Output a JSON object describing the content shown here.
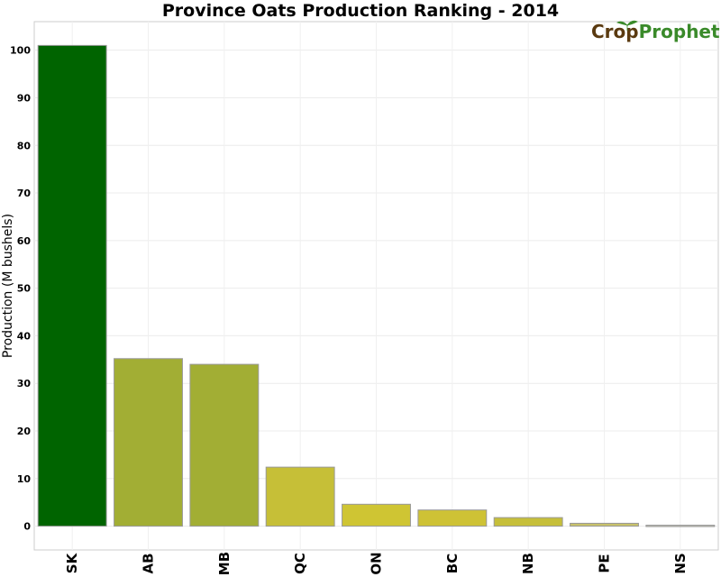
{
  "chart_data": {
    "type": "bar",
    "title": "Province Oats Production Ranking - 2014",
    "xlabel": "",
    "ylabel": "Production (M bushels)",
    "categories": [
      "SK",
      "AB",
      "MB",
      "QC",
      "ON",
      "BC",
      "NB",
      "PE",
      "NS"
    ],
    "values": [
      101.0,
      35.2,
      34.0,
      12.4,
      4.6,
      3.4,
      1.8,
      0.6,
      0.2
    ],
    "colors": [
      "#006400",
      "#a2ae34",
      "#a2ae34",
      "#c6bf37",
      "#cfc533",
      "#cec235",
      "#c6bf3a",
      "#c8c16a",
      "#c8c8b8"
    ],
    "bar_edge_color": "#999999",
    "ylim": [
      -5,
      106
    ],
    "yticks": [
      0,
      10,
      20,
      30,
      40,
      50,
      60,
      70,
      80,
      90,
      100
    ],
    "grid": true,
    "legend": "none"
  },
  "logo": {
    "part1": "Crop",
    "part2": "Prophet",
    "color1": "#5a3a10",
    "color2": "#3a8a2a"
  }
}
